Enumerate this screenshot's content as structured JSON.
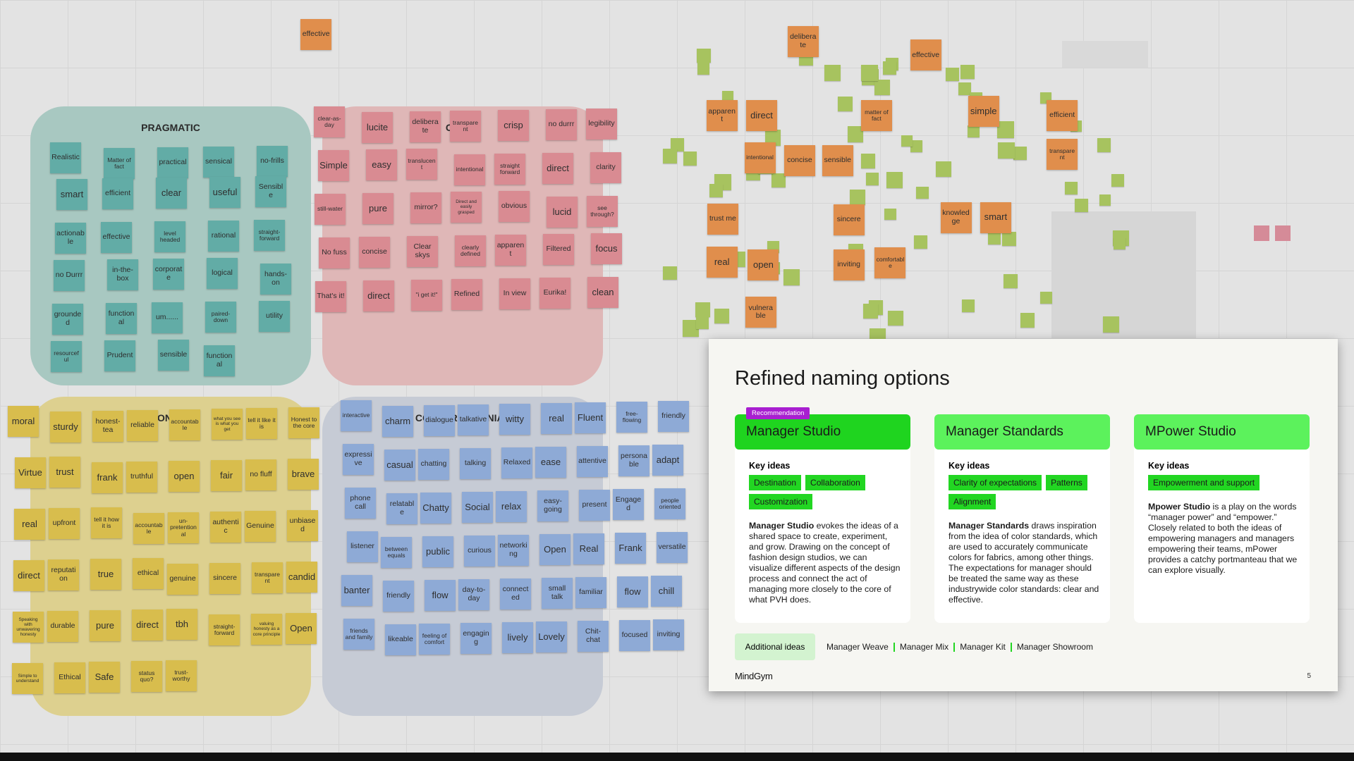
{
  "whiteboard": {
    "scattered_notes": [
      "effective",
      "deliberate",
      "effective",
      "apparent",
      "direct",
      "matter of fact",
      "simple",
      "efficient",
      "intentional",
      "concise",
      "sensible",
      "trust me",
      "sincere",
      "knowledge",
      "smart",
      "real",
      "open",
      "inviting",
      "comfortable",
      "vulnerable",
      "transparent"
    ],
    "clusters": [
      {
        "title": "PRAGMATIC",
        "notes": [
          "Realistic",
          "Matter of fact",
          "practical",
          "sensical",
          "no-frills",
          "smart",
          "efficient",
          "clear",
          "useful",
          "Sensible",
          "actionable",
          "effective",
          "level headed",
          "rational",
          "straight-forward",
          "no Durrr",
          "in-the-box",
          "corporate",
          "logical",
          "hands-on",
          "grounded",
          "functional",
          "um......",
          "paired-down",
          "utility",
          "resourceful",
          "Prudent",
          "sensible",
          "functional"
        ]
      },
      {
        "title": "CLEAR",
        "notes": [
          "clear-as-day",
          "lucite",
          "deliberate",
          "transparent",
          "crisp",
          "no durrr",
          "legibility",
          "Simple",
          "easy",
          "translucent",
          "intentional",
          "straight forward",
          "direct",
          "clarity",
          "still-water",
          "pure",
          "mirror?",
          "Direct and easily grasped",
          "obvious",
          "lucid",
          "see through?",
          "No fuss",
          "concise",
          "Clear skys",
          "clearly defined",
          "apparent",
          "Filtered",
          "focus",
          "That's it!",
          "direct",
          "\"i get it!\"",
          "Refined",
          "In view",
          "Eurika!",
          "clean"
        ]
      },
      {
        "title": "HONEST",
        "notes": [
          "moral",
          "sturdy",
          "honest-tea",
          "reliable",
          "accountable",
          "what you see is what you get",
          "tell it like it is",
          "Honest to the core",
          "Virtue",
          "trust",
          "frank",
          "truthful",
          "open",
          "fair",
          "no fluff",
          "brave",
          "real",
          "upfront",
          "tell it how it is",
          "accountable",
          "un-pretentional",
          "authentic",
          "Genuine",
          "unbiased",
          "direct",
          "reputation",
          "true",
          "ethical",
          "genuine",
          "sincere",
          "transparent",
          "candid",
          "Speaking with unwavering honesty",
          "durable",
          "pure",
          "direct",
          "tbh",
          "straight-forward",
          "valuing honesty as a core principle",
          "Open",
          "Simple to understand",
          "Ethical",
          "Safe",
          "status quo?",
          "trust-worthy"
        ]
      },
      {
        "title": "CONVERSATIONIAL",
        "notes": [
          "interactive",
          "charm",
          "dialogue",
          "talkative",
          "witty",
          "real",
          "Fluent",
          "free-flowing",
          "friendly",
          "expressive",
          "casual",
          "chatting",
          "talking",
          "Relaxed",
          "ease",
          "attentive",
          "personable",
          "adapt",
          "phone call",
          "relatable",
          "Chatty",
          "Social",
          "relax",
          "easy-going",
          "present",
          "Engaged",
          "people oriented",
          "listener",
          "between equals",
          "public",
          "curious",
          "networking",
          "Open",
          "Real",
          "Frank",
          "versatile",
          "banter",
          "friendly",
          "flow",
          "day-to-day",
          "connected",
          "small talk",
          "familiar",
          "flow",
          "chill",
          "friends and family",
          "likeable",
          "feeling of comfort",
          "engaging",
          "lively",
          "Lovely",
          "Chit-chat",
          "focused",
          "inviting"
        ]
      }
    ]
  },
  "slide": {
    "title": "Refined naming options",
    "badge": "Recommendation",
    "cards": [
      {
        "name": "Manager Studio",
        "key_label": "Key ideas",
        "tags": [
          "Destination",
          "Collaboration",
          "Customization"
        ],
        "lead": "Manager Studio",
        "text": " evokes the ideas of a shared space to create, experiment, and grow. Drawing on the concept of fashion design studios, we can visualize different aspects of the design process and connect the act of managing more closely to the core of what PVH does."
      },
      {
        "name": "Manager Standards",
        "key_label": "Key ideas",
        "tags": [
          "Clarity of expectations",
          "Patterns",
          "Alignment"
        ],
        "lead": "Manager Standards",
        "text": " draws inspiration from the idea of color standards, which are used to accurately communicate colors for fabrics, among other things. The expectations for manager should be treated the same way as these industrywide color standards: clear and effective."
      },
      {
        "name": "MPower Studio",
        "key_label": "Key ideas",
        "tags": [
          "Empowerment and support"
        ],
        "lead": "Mpower Studio",
        "text": " is a play on the words “manager power” and “empower.” Closely related to both the ideas of empowering managers and managers empowering their teams, mPower provides a catchy portmanteau that we can explore visually."
      }
    ],
    "additional_label": "Additional ideas",
    "additional": [
      "Manager Weave",
      "Manager Mix",
      "Manager Kit",
      "Manager Showroom"
    ],
    "footer": "MindGym",
    "page": "5"
  }
}
